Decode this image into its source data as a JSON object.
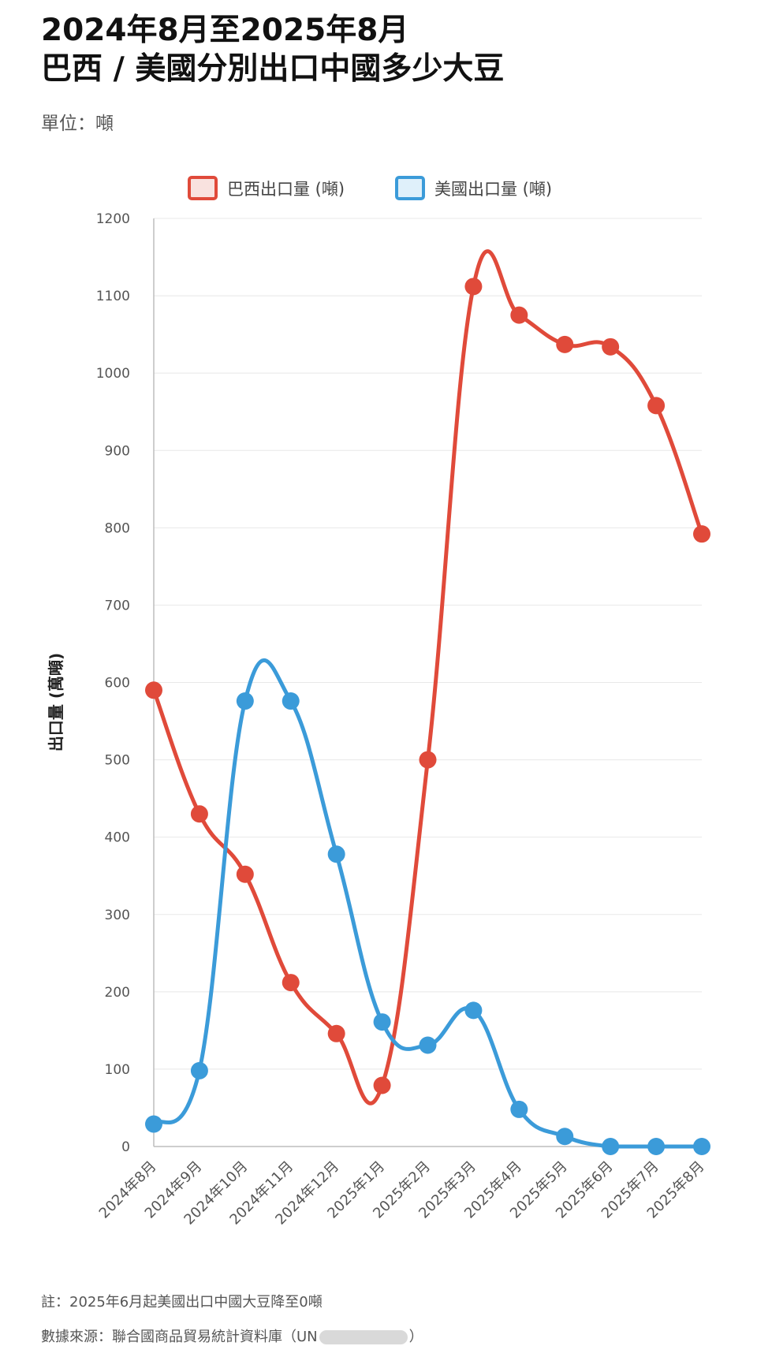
{
  "title": "2024年8月至2025年8月",
  "subtitle": "巴西 / 美國分別出口中國多少大豆",
  "unit_label": "單位：噸",
  "footnote": "註：2025年6月起美國出口中國大豆降至0噸",
  "source_prefix": "數據來源：聯合國商品貿易統計資料庫（UN",
  "source_suffix": "）",
  "colors": {
    "brazil": "#e04a3a",
    "us": "#3b9bd9",
    "grid": "#e8e8e8",
    "axis": "#bdbdbd"
  },
  "chart_data": {
    "type": "line",
    "categories": [
      "2024年8月",
      "2024年9月",
      "2024年10月",
      "2024年11月",
      "2024年12月",
      "2025年1月",
      "2025年2月",
      "2025年3月",
      "2025年4月",
      "2025年5月",
      "2025年6月",
      "2025年7月",
      "2025年8月"
    ],
    "series": [
      {
        "name": "巴西出口量 (噸)",
        "color": "#e04a3a",
        "values": [
          590,
          430,
          352,
          212,
          146,
          79,
          500,
          1112,
          1075,
          1037,
          1034,
          958,
          792
        ]
      },
      {
        "name": "美國出口量 (噸)",
        "color": "#3b9bd9",
        "values": [
          29,
          98,
          576,
          576,
          378,
          161,
          131,
          176,
          48,
          13,
          0,
          0,
          0
        ]
      }
    ],
    "ylabel": "出口量 (萬噸)",
    "xlabel": "",
    "ylim": [
      0,
      1200
    ],
    "yticks": [
      0,
      100,
      200,
      300,
      400,
      500,
      600,
      700,
      800,
      900,
      1000,
      1100,
      1200
    ],
    "grid": true,
    "legend_position": "top-center"
  }
}
